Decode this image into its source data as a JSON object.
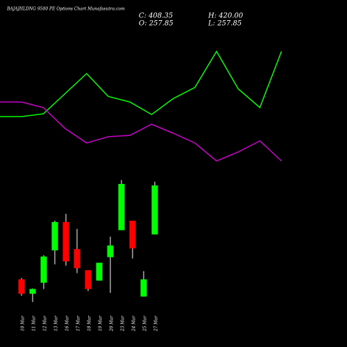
{
  "chart_data": [
    {
      "type": "line",
      "ylim": [
        0,
        250
      ],
      "series": [
        {
          "color": "#00ff00",
          "values": [
            82,
            82,
            86,
            115,
            144,
            111,
            103,
            85,
            108,
            124,
            176,
            122,
            95,
            176
          ]
        },
        {
          "color": "#cc00cc",
          "values": [
            103,
            103,
            95,
            65,
            44,
            53,
            55,
            71,
            58,
            44,
            18,
            31,
            47,
            18
          ]
        }
      ]
    },
    {
      "type": "candlestick",
      "title": "BAJAJHLDNG 9500 PE Options Chart Munafasutra.com",
      "ohlc_labels": [
        "C: 408.35",
        "H: 420.00",
        "O: 257.85",
        "L: 257.85"
      ],
      "categories": [
        "10 Mar",
        "11 Mar",
        "12 Mar",
        "13 Mar",
        "16 Mar",
        "17 Mar",
        "18 Mar",
        "19 Mar",
        "20 Mar",
        "23 Mar",
        "24 Mar",
        "25 Mar",
        "27 Mar"
      ],
      "open": [
        120,
        75.5,
        109.4,
        209,
        296,
        213,
        148,
        116,
        188,
        271,
        300,
        67,
        257.85
      ],
      "high": [
        124.3,
        92,
        194,
        300,
        321,
        275,
        148,
        171,
        251,
        425,
        300,
        145,
        420.0
      ],
      "low": [
        69.2,
        50,
        90,
        166,
        162,
        139,
        84,
        116,
        78,
        271,
        184,
        67,
        257.85
      ],
      "close": [
        75.5,
        90.5,
        190,
        296,
        175,
        154,
        90,
        171,
        224,
        413,
        215,
        120,
        408.35
      ],
      "up_color": "#00ff00",
      "down_color": "#ff0000",
      "ylim": [
        40,
        445
      ]
    }
  ]
}
